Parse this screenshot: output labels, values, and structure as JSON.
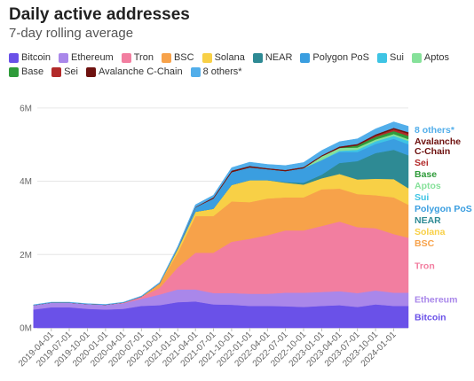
{
  "title": "Daily active addresses",
  "subtitle": "7-day rolling average",
  "chart_data": {
    "type": "area",
    "stacked": true,
    "x": [
      "2019-01-01",
      "2019-04-01",
      "2019-07-01",
      "2019-10-01",
      "2020-01-01",
      "2020-04-01",
      "2020-07-01",
      "2020-10-01",
      "2021-01-01",
      "2021-04-01",
      "2021-07-01",
      "2021-10-01",
      "2022-01-01",
      "2022-04-01",
      "2022-07-01",
      "2022-10-01",
      "2023-01-01",
      "2023-04-01",
      "2023-07-01",
      "2023-10-01",
      "2024-01-01",
      "2024-03-15"
    ],
    "x_tick_labels": [
      "2019-04-01",
      "2019-07-01",
      "2019-10-01",
      "2020-01-01",
      "2020-04-01",
      "2020-07-01",
      "2020-10-01",
      "2021-01-01",
      "2021-04-01",
      "2021-07-01",
      "2021-10-01",
      "2022-01-01",
      "2022-04-01",
      "2022-07-01",
      "2022-10-01",
      "2023-01-01",
      "2023-04-01",
      "2023-07-01",
      "2023-10-01",
      "2024-01-01"
    ],
    "y_ticks": [
      "0M",
      "2M",
      "4M",
      "6M"
    ],
    "ylim": [
      0,
      6600000
    ],
    "grid": true,
    "legend_position": "top",
    "series": [
      {
        "name": "Bitcoin",
        "color": "#6a51e8",
        "values": [
          500000,
          560000,
          560000,
          520000,
          500000,
          520000,
          600000,
          620000,
          700000,
          720000,
          640000,
          630000,
          600000,
          600000,
          590000,
          570000,
          600000,
          620000,
          570000,
          640000,
          600000,
          600000
        ]
      },
      {
        "name": "Ethereum",
        "color": "#a987ea",
        "values": [
          120000,
          130000,
          130000,
          130000,
          130000,
          150000,
          190000,
          290000,
          350000,
          330000,
          310000,
          320000,
          330000,
          330000,
          370000,
          390000,
          380000,
          380000,
          380000,
          380000,
          360000,
          360000
        ]
      },
      {
        "name": "Tron",
        "color": "#f27ea0",
        "values": [
          0,
          0,
          0,
          0,
          0,
          20000,
          60000,
          180000,
          600000,
          1000000,
          1100000,
          1400000,
          1500000,
          1600000,
          1700000,
          1700000,
          1800000,
          1900000,
          1800000,
          1700000,
          1600000,
          1500000
        ]
      },
      {
        "name": "BSC",
        "color": "#f7a24a",
        "values": [
          0,
          0,
          0,
          0,
          0,
          0,
          0,
          120000,
          400000,
          1000000,
          1000000,
          1100000,
          1000000,
          1000000,
          900000,
          900000,
          1000000,
          900000,
          900000,
          900000,
          1000000,
          900000
        ]
      },
      {
        "name": "Solana",
        "color": "#f8d046",
        "values": [
          0,
          0,
          0,
          0,
          0,
          0,
          0,
          0,
          100000,
          120000,
          200000,
          450000,
          600000,
          500000,
          400000,
          350000,
          300000,
          400000,
          400000,
          450000,
          500000,
          450000
        ]
      },
      {
        "name": "NEAR",
        "color": "#2e8a94",
        "values": [
          0,
          0,
          0,
          0,
          0,
          0,
          0,
          0,
          0,
          0,
          0,
          0,
          0,
          0,
          20000,
          50000,
          100000,
          300000,
          500000,
          700000,
          800000,
          900000
        ]
      },
      {
        "name": "Polygon PoS",
        "color": "#3a9ee0",
        "values": [
          0,
          0,
          0,
          0,
          0,
          0,
          0,
          0,
          20000,
          120000,
          280000,
          350000,
          350000,
          300000,
          300000,
          400000,
          400000,
          300000,
          250000,
          250000,
          300000,
          300000
        ]
      },
      {
        "name": "Sui",
        "color": "#3ec4e4",
        "values": [
          0,
          0,
          0,
          0,
          0,
          0,
          0,
          0,
          0,
          0,
          0,
          0,
          0,
          0,
          0,
          0,
          0,
          30000,
          60000,
          70000,
          80000,
          90000
        ]
      },
      {
        "name": "Aptos",
        "color": "#86e19a",
        "values": [
          0,
          0,
          0,
          0,
          0,
          0,
          0,
          0,
          0,
          0,
          0,
          0,
          0,
          0,
          0,
          0,
          100000,
          80000,
          60000,
          50000,
          50000,
          50000
        ]
      },
      {
        "name": "Base",
        "color": "#2f9b3a",
        "values": [
          0,
          0,
          0,
          0,
          0,
          0,
          0,
          0,
          0,
          0,
          0,
          0,
          0,
          0,
          0,
          0,
          0,
          0,
          60000,
          70000,
          80000,
          90000
        ]
      },
      {
        "name": "Sei",
        "color": "#b22a2a",
        "values": [
          0,
          0,
          0,
          0,
          0,
          0,
          0,
          0,
          0,
          0,
          0,
          0,
          0,
          0,
          0,
          0,
          0,
          0,
          0,
          30000,
          50000,
          60000
        ]
      },
      {
        "name": "Avalanche C-Chain",
        "color": "#6e1210",
        "values": [
          0,
          0,
          0,
          0,
          0,
          0,
          0,
          0,
          0,
          10000,
          30000,
          40000,
          40000,
          30000,
          30000,
          30000,
          30000,
          40000,
          40000,
          40000,
          40000,
          40000
        ]
      },
      {
        "name": "8 others*",
        "color": "#52aeea",
        "values": [
          10000,
          10000,
          10000,
          10000,
          10000,
          10000,
          20000,
          30000,
          50000,
          60000,
          60000,
          80000,
          100000,
          100000,
          120000,
          120000,
          130000,
          130000,
          140000,
          150000,
          160000,
          160000
        ]
      }
    ]
  }
}
